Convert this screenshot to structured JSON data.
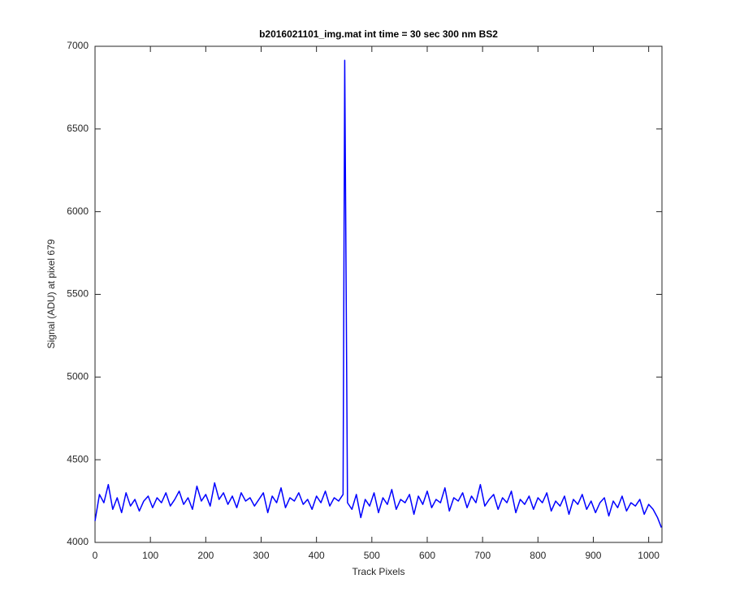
{
  "chart_data": {
    "type": "line",
    "title": "b2016021101_img.mat int time = 30 sec  300 nm BS2",
    "xlabel": "Track Pixels",
    "ylabel": "Signal (ADU) at pixel 679",
    "x": [
      0,
      8,
      16,
      24,
      32,
      40,
      48,
      56,
      64,
      72,
      80,
      88,
      96,
      104,
      112,
      120,
      128,
      136,
      144,
      152,
      160,
      168,
      176,
      184,
      192,
      200,
      208,
      216,
      224,
      232,
      240,
      248,
      256,
      264,
      272,
      280,
      288,
      296,
      304,
      312,
      320,
      328,
      336,
      344,
      352,
      360,
      368,
      376,
      384,
      392,
      400,
      408,
      416,
      424,
      432,
      440,
      448,
      451,
      456,
      464,
      472,
      480,
      488,
      496,
      504,
      512,
      520,
      528,
      536,
      544,
      552,
      560,
      568,
      576,
      584,
      592,
      600,
      608,
      616,
      624,
      632,
      640,
      648,
      656,
      664,
      672,
      680,
      688,
      696,
      704,
      712,
      720,
      728,
      736,
      744,
      752,
      760,
      768,
      776,
      784,
      792,
      800,
      808,
      816,
      824,
      832,
      840,
      848,
      856,
      864,
      872,
      880,
      888,
      896,
      904,
      912,
      920,
      928,
      936,
      944,
      952,
      960,
      968,
      976,
      984,
      992,
      1000,
      1008,
      1016,
      1023
    ],
    "series": [
      {
        "color": "#0000ff",
        "values": [
          4130,
          4290,
          4240,
          4350,
          4200,
          4270,
          4180,
          4300,
          4220,
          4260,
          4190,
          4250,
          4280,
          4210,
          4270,
          4240,
          4300,
          4220,
          4260,
          4310,
          4230,
          4270,
          4200,
          4340,
          4250,
          4290,
          4220,
          4360,
          4260,
          4300,
          4230,
          4280,
          4210,
          4300,
          4250,
          4270,
          4220,
          4260,
          4300,
          4180,
          4280,
          4240,
          4330,
          4210,
          4270,
          4250,
          4300,
          4230,
          4260,
          4200,
          4280,
          4240,
          4310,
          4220,
          4270,
          4250,
          4290,
          6915,
          4240,
          4200,
          4290,
          4150,
          4260,
          4220,
          4300,
          4180,
          4270,
          4230,
          4320,
          4200,
          4260,
          4240,
          4290,
          4170,
          4280,
          4230,
          4310,
          4210,
          4260,
          4240,
          4330,
          4190,
          4270,
          4250,
          4300,
          4210,
          4280,
          4240,
          4350,
          4220,
          4260,
          4290,
          4200,
          4270,
          4240,
          4310,
          4180,
          4260,
          4230,
          4280,
          4200,
          4270,
          4240,
          4300,
          4190,
          4250,
          4220,
          4280,
          4170,
          4260,
          4230,
          4290,
          4200,
          4250,
          4180,
          4240,
          4270,
          4160,
          4250,
          4210,
          4280,
          4190,
          4240,
          4220,
          4260,
          4170,
          4230,
          4200,
          4150,
          4090
        ]
      }
    ],
    "xlim": [
      0,
      1024
    ],
    "xticks": [
      0,
      100,
      200,
      300,
      400,
      500,
      600,
      700,
      800,
      900,
      1000
    ],
    "ylim": [
      4000,
      7000
    ],
    "yticks": [
      4000,
      4500,
      5000,
      5500,
      6000,
      6500,
      7000
    ]
  }
}
